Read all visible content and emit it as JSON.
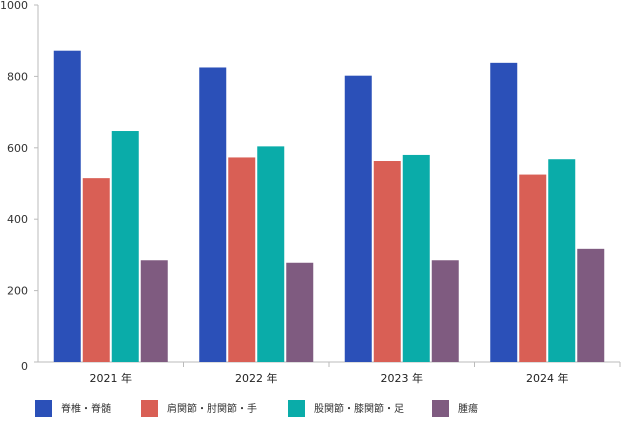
{
  "chart_data": {
    "type": "bar",
    "categories": [
      "2021 年",
      "2022 年",
      "2023 年",
      "2024 年"
    ],
    "series": [
      {
        "name": "脊椎・脊髄",
        "color": "#2b50b8",
        "values": [
          872,
          825,
          802,
          838
        ]
      },
      {
        "name": "肩関節・肘関節・手",
        "color": "#d95f55",
        "values": [
          515,
          573,
          563,
          525
        ]
      },
      {
        "name": "股関節・膝関節・足",
        "color": "#0aaca9",
        "values": [
          647,
          604,
          580,
          568
        ]
      },
      {
        "name": "腫瘍",
        "color": "#7f5b80",
        "values": [
          285,
          278,
          285,
          317
        ]
      }
    ],
    "yticks": [
      0,
      200,
      400,
      600,
      800,
      1000
    ],
    "ylim": [
      0,
      1000
    ],
    "grid": false,
    "legend": "bottom"
  }
}
